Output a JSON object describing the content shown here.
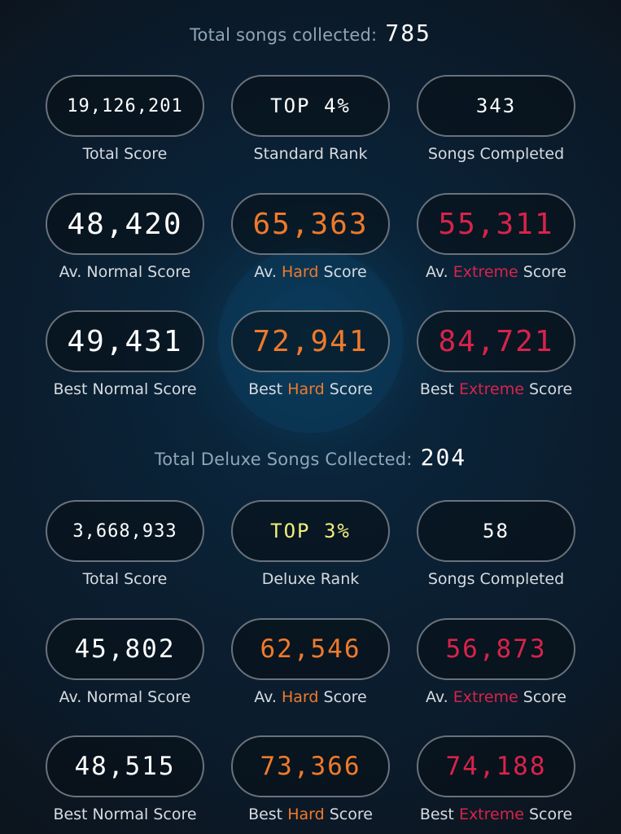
{
  "sections": [
    {
      "header": {
        "label": "Total songs collected:",
        "value": "785"
      },
      "rows": [
        [
          {
            "value": "19,126,201",
            "caption": [
              "",
              "Total Score",
              ""
            ]
          },
          {
            "value": "TOP 4%",
            "caption": [
              "",
              "Standard Rank",
              ""
            ]
          },
          {
            "value": "343",
            "caption": [
              "",
              "Songs Completed",
              ""
            ]
          }
        ],
        [
          {
            "value": "48,420",
            "caption": [
              "Av. Normal Score",
              "",
              ""
            ]
          },
          {
            "value": "65,363",
            "caption": [
              "Av. ",
              "Hard",
              " Score"
            ]
          },
          {
            "value": "55,311",
            "caption": [
              "Av. ",
              "Extreme",
              " Score"
            ]
          }
        ],
        [
          {
            "value": "49,431",
            "caption": [
              "Best Normal Score",
              "",
              ""
            ]
          },
          {
            "value": "72,941",
            "caption": [
              "Best ",
              "Hard",
              " Score"
            ]
          },
          {
            "value": "84,721",
            "caption": [
              "Best ",
              "Extreme",
              " Score"
            ]
          }
        ]
      ]
    },
    {
      "header": {
        "label": "Total Deluxe Songs Collected:",
        "value": "204"
      },
      "rows": [
        [
          {
            "value": "3,668,933",
            "caption": [
              "",
              "Total Score",
              ""
            ]
          },
          {
            "value": "TOP 3%",
            "caption": [
              "",
              "Deluxe Rank",
              ""
            ]
          },
          {
            "value": "58",
            "caption": [
              "",
              "Songs Completed",
              ""
            ]
          }
        ],
        [
          {
            "value": "45,802",
            "caption": [
              "Av. Normal Score",
              "",
              ""
            ]
          },
          {
            "value": "62,546",
            "caption": [
              "Av. ",
              "Hard",
              " Score"
            ]
          },
          {
            "value": "56,873",
            "caption": [
              "Av. ",
              "Extreme",
              " Score"
            ]
          }
        ],
        [
          {
            "value": "48,515",
            "caption": [
              "Best Normal Score",
              "",
              ""
            ]
          },
          {
            "value": "73,366",
            "caption": [
              "Best ",
              "Hard",
              " Score"
            ]
          },
          {
            "value": "74,188",
            "caption": [
              "Best ",
              "Extreme",
              " Score"
            ]
          }
        ]
      ]
    }
  ],
  "colors": {
    "normal": "#ffffff",
    "hard": "#f07a2a",
    "extreme": "#d8234a",
    "rank_highlight": "#f2ee7c",
    "pill_border": "#6a727c",
    "header_label": "#8fa6b8"
  }
}
